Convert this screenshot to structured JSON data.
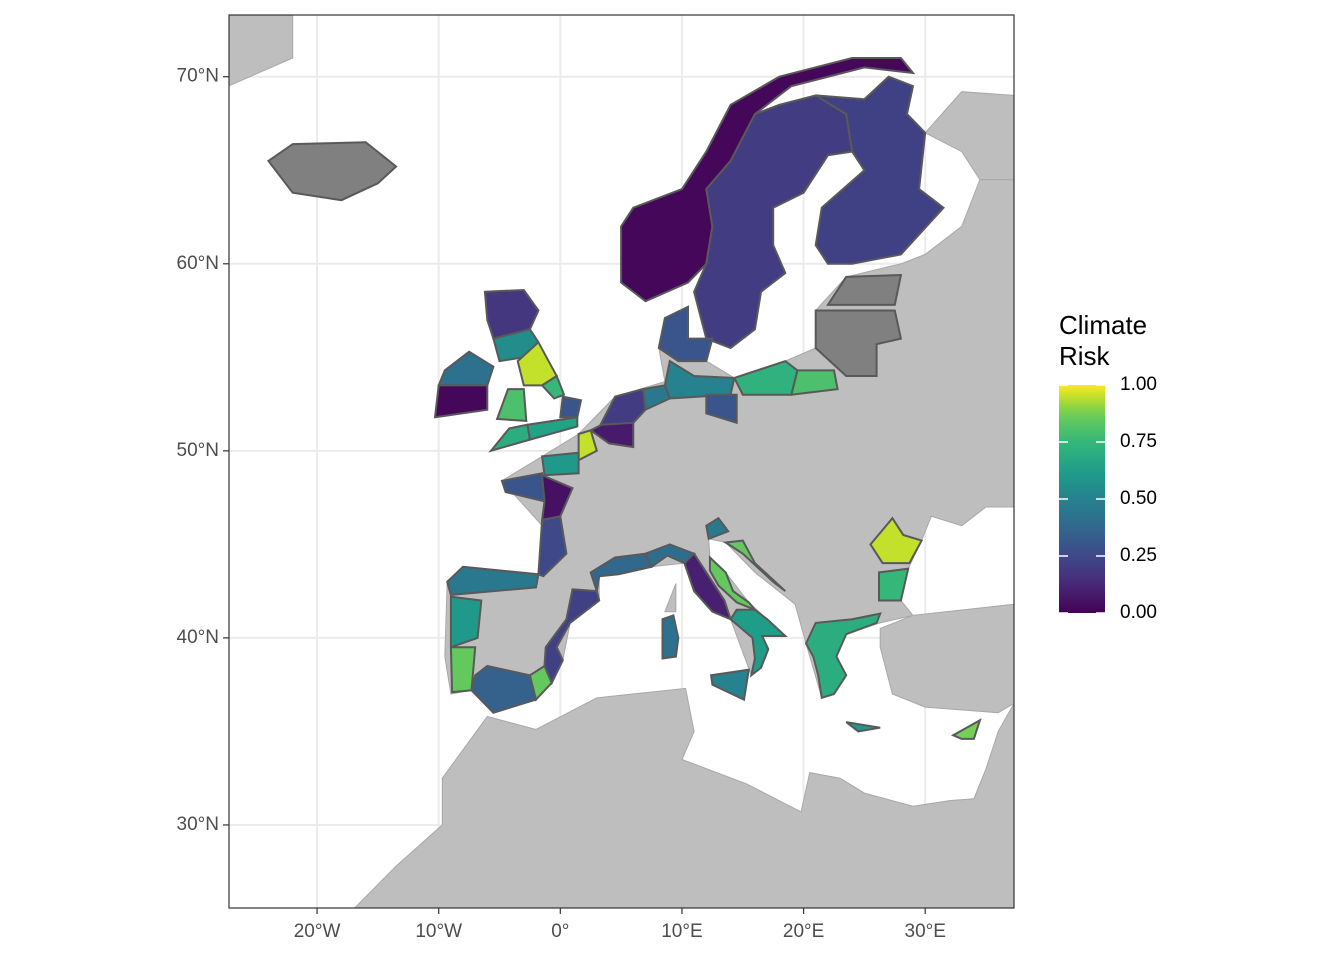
{
  "chart_data": {
    "type": "choropleth",
    "xlim": [
      -27.24,
      37.3
    ],
    "ylim": [
      25.56,
      73.3
    ],
    "xticks": [
      {
        "value": -20,
        "label": "20°W"
      },
      {
        "value": -10,
        "label": "10°W"
      },
      {
        "value": 0,
        "label": "0°"
      },
      {
        "value": 10,
        "label": "10°E"
      },
      {
        "value": 20,
        "label": "20°E"
      },
      {
        "value": 30,
        "label": "30°E"
      }
    ],
    "yticks": [
      {
        "value": 30,
        "label": "30°N"
      },
      {
        "value": 40,
        "label": "40°N"
      },
      {
        "value": 50,
        "label": "50°N"
      },
      {
        "value": 60,
        "label": "60°N"
      },
      {
        "value": 70,
        "label": "70°N"
      }
    ],
    "grid": true,
    "colorscale": "viridis",
    "land_color": "#bebebe",
    "na_color": "#808080",
    "border_color": "#595959",
    "legend_title": [
      "Climate",
      "Risk"
    ],
    "clim": [
      0,
      1
    ],
    "cticks": [
      {
        "value": 0,
        "label": "0.00"
      },
      {
        "value": 0.25,
        "label": "0.25"
      },
      {
        "value": 0.5,
        "label": "0.50"
      },
      {
        "value": 0.75,
        "label": "0.75"
      },
      {
        "value": 1,
        "label": "1.00"
      }
    ],
    "values": [
      0.02,
      0.2,
      0.22,
      0.72,
      0.8,
      0.5,
      0.45,
      0.3,
      0.3,
      0.2,
      0.08,
      0.95,
      0.6,
      0.3,
      0.05,
      0.25,
      0.45,
      0.6,
      0.85,
      0.35,
      0.85,
      0.22,
      0.38,
      0.4,
      0.45,
      0.1,
      0.85,
      0.62,
      0.5,
      0.42,
      0.85,
      0.7,
      0.6,
      0.75,
      0.95,
      0.88,
      0.18,
      0.55,
      0.95,
      0.75,
      0.8,
      0.3,
      0.7,
      0.65,
      0.42,
      0.02
    ]
  }
}
